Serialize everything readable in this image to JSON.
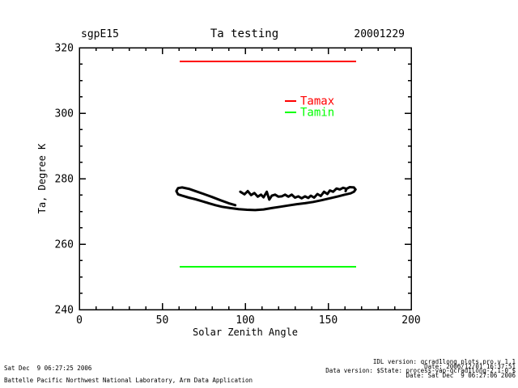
{
  "header": {
    "site": "sgpE15",
    "title": "Ta testing",
    "date": "20001229"
  },
  "chart_data": {
    "type": "line",
    "title": "Ta testing",
    "site": "sgpE15",
    "date_label": "20001229",
    "xlabel": "Solar Zenith Angle",
    "ylabel": "Ta, Degree K",
    "xlim": [
      0,
      200
    ],
    "ylim": [
      240,
      320
    ],
    "x_major_ticks": [
      0,
      50,
      100,
      150,
      200
    ],
    "x_minor_step": 10,
    "y_major_ticks": [
      240,
      260,
      280,
      300,
      320
    ],
    "y_minor_step": 5,
    "grid": false,
    "frame_color": "#000000",
    "legend": {
      "position": "upper-center-right",
      "entries": [
        {
          "label": "Tamax",
          "color": "#ff0000"
        },
        {
          "label": "Tamin",
          "color": "#00ff00"
        }
      ]
    },
    "series": [
      {
        "name": "Tamax",
        "type": "hline",
        "color": "#ff0000",
        "y": 315.8,
        "x_range": [
          60.5,
          166.8
        ]
      },
      {
        "name": "Tamin",
        "type": "hline",
        "color": "#00ff00",
        "y": 253.1,
        "x_range": [
          60.5,
          166.8
        ]
      },
      {
        "name": "Ta",
        "type": "path",
        "color": "#000000",
        "segments": [
          [
            [
              94.0,
              271.9
            ],
            [
              90,
              272.5
            ],
            [
              85,
              273.4
            ],
            [
              80,
              274.4
            ],
            [
              75,
              275.3
            ],
            [
              70,
              276.2
            ],
            [
              66,
              276.9
            ],
            [
              62,
              277.3
            ],
            [
              59.5,
              277.1
            ],
            [
              58.5,
              276.2
            ],
            [
              59.5,
              275.2
            ],
            [
              62,
              274.8
            ],
            [
              66,
              274.2
            ],
            [
              70,
              273.7
            ],
            [
              74,
              273.1
            ],
            [
              78,
              272.5
            ],
            [
              82,
              271.9
            ],
            [
              86,
              271.4
            ],
            [
              91,
              271.0
            ],
            [
              96,
              270.7
            ],
            [
              101,
              270.5
            ],
            [
              106,
              270.4
            ],
            [
              111,
              270.6
            ],
            [
              116,
              271.0
            ],
            [
              121,
              271.4
            ],
            [
              126,
              271.8
            ],
            [
              131,
              272.2
            ],
            [
              136,
              272.5
            ],
            [
              141,
              272.9
            ],
            [
              146,
              273.4
            ],
            [
              151,
              274.0
            ],
            [
              156,
              274.6
            ],
            [
              160,
              275.1
            ],
            [
              163.5,
              275.5
            ],
            [
              165.5,
              276.0
            ],
            [
              166.5,
              276.7
            ],
            [
              165.5,
              277.3
            ],
            [
              163,
              277.4
            ],
            [
              161,
              276.9
            ],
            [
              160.5,
              276.2
            ]
          ],
          [
            [
              97,
              276.0
            ],
            [
              99.5,
              275.2
            ],
            [
              101.5,
              276.2
            ],
            [
              103.5,
              275.0
            ],
            [
              105.5,
              275.6
            ],
            [
              107.5,
              274.5
            ],
            [
              109.5,
              275.1
            ],
            [
              111,
              274.3
            ],
            [
              113,
              276.0
            ],
            [
              114.5,
              273.6
            ],
            [
              116,
              274.8
            ],
            [
              118,
              275.1
            ],
            [
              120,
              274.5
            ],
            [
              122,
              274.6
            ],
            [
              124,
              275.1
            ],
            [
              126,
              274.5
            ],
            [
              128,
              275.1
            ],
            [
              130,
              274.2
            ],
            [
              132,
              274.6
            ],
            [
              134,
              274.0
            ],
            [
              136,
              274.6
            ],
            [
              138,
              274.1
            ],
            [
              139.5,
              274.8
            ],
            [
              141.5,
              274.2
            ],
            [
              143.5,
              275.3
            ],
            [
              145.5,
              274.7
            ],
            [
              147.5,
              276.0
            ],
            [
              149.5,
              275.3
            ],
            [
              151,
              276.4
            ],
            [
              153,
              276.0
            ],
            [
              155,
              277.0
            ],
            [
              157,
              276.7
            ],
            [
              159,
              277.2
            ],
            [
              161,
              276.9
            ]
          ]
        ]
      }
    ]
  },
  "footer": {
    "left_lines": [
      "Sat Dec  9 06:27:25 2006",
      "Battelle Pacific Northwest National Laboratory, Arm Data Application"
    ],
    "right_lines": [
      "IDL version: qcrad1long_plots.pro,v 1.1",
      "Date: 2006/12/01 16:37:51",
      "Data version: $State: process-vap-qcrad1long-2.1-0 $",
      "Date: Sat Dec  9 06:27:06 2006"
    ]
  }
}
